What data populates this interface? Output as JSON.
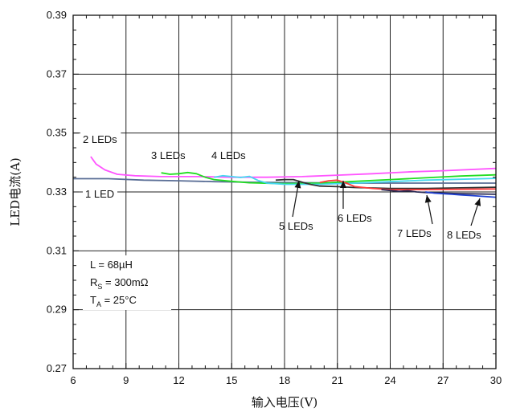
{
  "chart_data": {
    "type": "line",
    "xlabel": "输入电压(V)",
    "ylabel": "LED电流(A)",
    "xlim": [
      6,
      30
    ],
    "ylim": [
      0.27,
      0.39
    ],
    "x_ticks": [
      6,
      9,
      12,
      15,
      18,
      21,
      24,
      27,
      30
    ],
    "y_ticks": [
      0.27,
      0.29,
      0.31,
      0.33,
      0.35,
      0.37,
      0.39
    ],
    "x_tick_labels": [
      "6",
      "9",
      "12",
      "15",
      "18",
      "21",
      "24",
      "27",
      "30"
    ],
    "y_tick_labels": [
      "0.27",
      "0.29",
      "0.31",
      "0.33",
      "0.35",
      "0.37",
      "0.39"
    ],
    "grid": true,
    "conditions": {
      "line1": "L = 68µH",
      "line2_main": "R",
      "line2_sub": "S",
      "line2_rest": " = 300mΩ",
      "line3_main": "T",
      "line3_sub": "A",
      "line3_rest": " = 25°C"
    },
    "series": [
      {
        "name": "1 LED",
        "color": "#5a6e96",
        "x": [
          6,
          8,
          10,
          12,
          14,
          16,
          18,
          20,
          22,
          24,
          26,
          28,
          30
        ],
        "y": [
          0.3345,
          0.3345,
          0.334,
          0.3338,
          0.3335,
          0.3333,
          0.3332,
          0.3331,
          0.333,
          0.333,
          0.333,
          0.333,
          0.333
        ]
      },
      {
        "name": "2 LEDs",
        "color": "#ff55ff",
        "x": [
          7,
          7.3,
          7.8,
          8.5,
          9.5,
          11,
          13,
          15,
          17,
          19,
          21,
          23,
          25,
          27,
          30
        ],
        "y": [
          0.342,
          0.3395,
          0.3375,
          0.336,
          0.3355,
          0.3352,
          0.3352,
          0.335,
          0.335,
          0.3352,
          0.3357,
          0.3362,
          0.3368,
          0.3372,
          0.338
        ]
      },
      {
        "name": "3 LEDs",
        "color": "#22dd22",
        "x": [
          11,
          11.5,
          12,
          12.5,
          13,
          13.5,
          14,
          15,
          16,
          18,
          20,
          22,
          24,
          26,
          28,
          30
        ],
        "y": [
          0.3365,
          0.336,
          0.3362,
          0.3366,
          0.3362,
          0.335,
          0.3342,
          0.3336,
          0.3331,
          0.3328,
          0.333,
          0.3336,
          0.3342,
          0.3348,
          0.3354,
          0.3358
        ]
      },
      {
        "name": "4 LEDs",
        "color": "#44d8f0",
        "x": [
          14,
          14.5,
          15,
          15.5,
          16,
          16.5,
          17,
          18,
          20,
          22,
          24,
          26,
          28,
          30
        ],
        "y": [
          0.335,
          0.3355,
          0.3352,
          0.3349,
          0.3353,
          0.3339,
          0.333,
          0.3326,
          0.3326,
          0.333,
          0.3335,
          0.334,
          0.3343,
          0.3346
        ]
      },
      {
        "name": "5 LEDs",
        "color": "#333333",
        "x": [
          17.5,
          18,
          18.5,
          19,
          19.5,
          20,
          21,
          22,
          24,
          26,
          28,
          30
        ],
        "y": [
          0.334,
          0.3342,
          0.3342,
          0.3333,
          0.3325,
          0.332,
          0.3318,
          0.3315,
          0.3312,
          0.3312,
          0.3314,
          0.3316
        ]
      },
      {
        "name": "6 LEDs",
        "color": "#ff3b3b",
        "x": [
          20,
          20.5,
          21,
          21.5,
          22,
          23,
          24,
          26,
          28,
          30
        ],
        "y": [
          0.3332,
          0.3338,
          0.334,
          0.333,
          0.3318,
          0.3312,
          0.3308,
          0.3308,
          0.3309,
          0.331
        ]
      },
      {
        "name": "7 LEDs",
        "color": "#2b2b55",
        "x": [
          23.5,
          24,
          24.5,
          25,
          25.5,
          26,
          27,
          28,
          30
        ],
        "y": [
          0.3308,
          0.3305,
          0.3302,
          0.3304,
          0.33,
          0.3298,
          0.3296,
          0.3294,
          0.3292
        ]
      },
      {
        "name": "8 LEDs",
        "color": "#1f3fd0",
        "x": [
          26,
          26.5,
          27,
          27.5,
          28,
          28.5,
          29,
          29.5,
          30
        ],
        "y": [
          0.33,
          0.3296,
          0.3294,
          0.3292,
          0.329,
          0.3288,
          0.3286,
          0.3284,
          0.3282
        ]
      }
    ],
    "annotations": [
      {
        "text": "2 LEDs",
        "arrow": false
      },
      {
        "text": "3 LEDs",
        "arrow": false
      },
      {
        "text": "4 LEDs",
        "arrow": false
      },
      {
        "text": "1 LED",
        "arrow": false
      },
      {
        "text": "5 LEDs",
        "arrow": true
      },
      {
        "text": "6 LEDs",
        "arrow": true
      },
      {
        "text": "7 LEDs",
        "arrow": true
      },
      {
        "text": "8 LEDs",
        "arrow": true
      }
    ]
  }
}
